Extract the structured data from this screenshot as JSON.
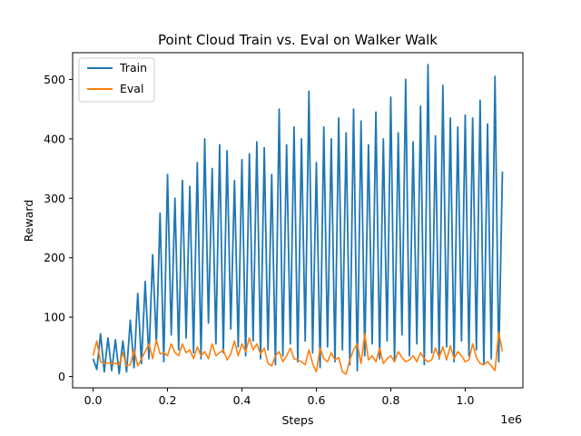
{
  "chart_data": {
    "type": "line",
    "title": "Point Cloud Train vs. Eval on Walker Walk",
    "xlabel": "Steps",
    "ylabel": "Reward",
    "x_offset_label": "1e6",
    "xlim": [
      -0.055,
      1.155
    ],
    "ylim": [
      -19,
      545
    ],
    "x_ticks": [
      0.0,
      0.2,
      0.4,
      0.6,
      0.8,
      1.0
    ],
    "x_tick_labels": [
      "0.0",
      "0.2",
      "0.4",
      "0.6",
      "0.8",
      "1.0"
    ],
    "y_ticks": [
      0,
      100,
      200,
      300,
      400,
      500
    ],
    "y_tick_labels": [
      "0",
      "100",
      "200",
      "300",
      "400",
      "500"
    ],
    "legend": {
      "placement": "top-left"
    },
    "series": [
      {
        "name": "Train",
        "color": "#1f77b4",
        "x": [
          0.0,
          0.01,
          0.02,
          0.03,
          0.04,
          0.05,
          0.06,
          0.07,
          0.08,
          0.09,
          0.1,
          0.11,
          0.12,
          0.13,
          0.14,
          0.15,
          0.16,
          0.17,
          0.18,
          0.19,
          0.2,
          0.21,
          0.22,
          0.23,
          0.24,
          0.25,
          0.26,
          0.27,
          0.28,
          0.29,
          0.3,
          0.31,
          0.32,
          0.33,
          0.34,
          0.35,
          0.36,
          0.37,
          0.38,
          0.39,
          0.4,
          0.41,
          0.42,
          0.43,
          0.44,
          0.45,
          0.46,
          0.47,
          0.48,
          0.49,
          0.5,
          0.51,
          0.52,
          0.53,
          0.54,
          0.55,
          0.56,
          0.57,
          0.58,
          0.59,
          0.6,
          0.61,
          0.62,
          0.63,
          0.64,
          0.65,
          0.66,
          0.67,
          0.68,
          0.69,
          0.7,
          0.71,
          0.72,
          0.73,
          0.74,
          0.75,
          0.76,
          0.77,
          0.78,
          0.79,
          0.8,
          0.81,
          0.82,
          0.83,
          0.84,
          0.85,
          0.86,
          0.87,
          0.88,
          0.89,
          0.9,
          0.91,
          0.92,
          0.93,
          0.94,
          0.95,
          0.96,
          0.97,
          0.98,
          0.99,
          1.0,
          1.01,
          1.02,
          1.03,
          1.04,
          1.05,
          1.06,
          1.07,
          1.08,
          1.09,
          1.1
        ],
        "y": [
          30,
          12,
          72,
          8,
          65,
          10,
          62,
          5,
          60,
          8,
          95,
          15,
          140,
          22,
          160,
          30,
          205,
          55,
          275,
          25,
          340,
          70,
          300,
          45,
          330,
          65,
          320,
          40,
          360,
          30,
          400,
          90,
          350,
          55,
          390,
          40,
          380,
          80,
          330,
          50,
          365,
          35,
          375,
          60,
          395,
          30,
          385,
          45,
          340,
          20,
          450,
          35,
          390,
          55,
          420,
          25,
          400,
          60,
          480,
          40,
          360,
          15,
          420,
          50,
          400,
          25,
          435,
          45,
          410,
          20,
          450,
          10,
          430,
          35,
          390,
          55,
          445,
          30,
          400,
          60,
          470,
          25,
          410,
          70,
          500,
          35,
          395,
          55,
          455,
          20,
          525,
          40,
          405,
          30,
          490,
          50,
          435,
          25,
          420,
          60,
          440,
          35,
          435,
          45,
          465,
          20,
          425,
          30,
          505,
          25,
          345
        ]
      },
      {
        "name": "Eval",
        "color": "#ff7f0e",
        "x": [
          0.0,
          0.01,
          0.02,
          0.03,
          0.04,
          0.05,
          0.06,
          0.07,
          0.08,
          0.09,
          0.1,
          0.11,
          0.12,
          0.13,
          0.14,
          0.15,
          0.16,
          0.17,
          0.18,
          0.19,
          0.2,
          0.21,
          0.22,
          0.23,
          0.24,
          0.25,
          0.26,
          0.27,
          0.28,
          0.29,
          0.3,
          0.31,
          0.32,
          0.33,
          0.34,
          0.35,
          0.36,
          0.37,
          0.38,
          0.39,
          0.4,
          0.41,
          0.42,
          0.43,
          0.44,
          0.45,
          0.46,
          0.47,
          0.48,
          0.49,
          0.5,
          0.51,
          0.52,
          0.53,
          0.54,
          0.55,
          0.56,
          0.57,
          0.58,
          0.59,
          0.6,
          0.61,
          0.62,
          0.63,
          0.64,
          0.65,
          0.66,
          0.67,
          0.68,
          0.69,
          0.7,
          0.71,
          0.72,
          0.73,
          0.74,
          0.75,
          0.76,
          0.77,
          0.78,
          0.79,
          0.8,
          0.81,
          0.82,
          0.83,
          0.84,
          0.85,
          0.86,
          0.87,
          0.88,
          0.89,
          0.9,
          0.91,
          0.92,
          0.93,
          0.94,
          0.95,
          0.96,
          0.97,
          0.98,
          0.99,
          1.0,
          1.01,
          1.02,
          1.03,
          1.04,
          1.05,
          1.06,
          1.07,
          1.08,
          1.09,
          1.1
        ],
        "y": [
          35,
          60,
          25,
          22,
          23,
          22,
          22,
          20,
          40,
          18,
          20,
          45,
          18,
          30,
          42,
          55,
          30,
          62,
          38,
          40,
          35,
          55,
          40,
          35,
          55,
          40,
          45,
          30,
          50,
          35,
          42,
          30,
          55,
          35,
          40,
          45,
          28,
          38,
          60,
          35,
          55,
          42,
          65,
          45,
          55,
          38,
          48,
          22,
          18,
          35,
          42,
          25,
          35,
          48,
          30,
          28,
          25,
          20,
          45,
          22,
          8,
          48,
          30,
          25,
          40,
          28,
          32,
          8,
          4,
          28,
          45,
          55,
          22,
          72,
          28,
          35,
          25,
          48,
          22,
          30,
          35,
          25,
          42,
          32,
          25,
          28,
          35,
          25,
          40,
          30,
          25,
          28,
          48,
          32,
          50,
          28,
          52,
          30,
          42,
          35,
          25,
          28,
          55,
          32,
          22,
          20,
          25,
          18,
          10,
          75,
          42
        ]
      }
    ]
  }
}
